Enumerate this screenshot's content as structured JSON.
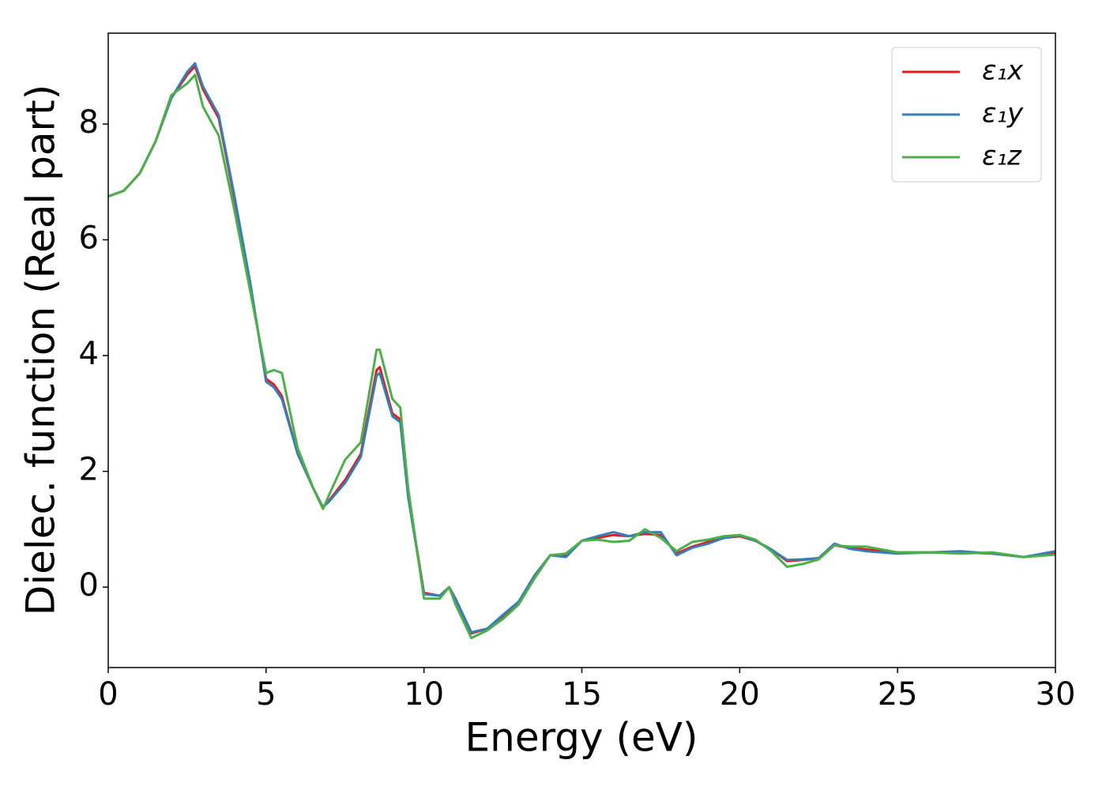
{
  "chart_data": {
    "type": "line",
    "xlabel": "Energy (eV)",
    "ylabel": "Dielec. function (Real part)",
    "x": [
      0,
      0.5,
      1,
      1.5,
      2,
      2.5,
      2.75,
      3,
      3.5,
      4,
      4.5,
      5,
      5.25,
      5.5,
      6,
      6.5,
      6.8,
      7,
      7.5,
      8,
      8.5,
      8.6,
      9,
      9.25,
      9.5,
      10,
      10.5,
      10.8,
      11,
      11.5,
      12,
      12.5,
      13,
      13.5,
      14,
      14.5,
      15,
      15.5,
      16,
      16.5,
      17,
      17.5,
      18,
      18.5,
      19,
      19.5,
      20,
      20.5,
      21,
      21.5,
      22,
      22.5,
      23,
      23.5,
      24,
      25,
      26,
      27,
      28,
      29,
      30
    ],
    "series": [
      {
        "name": "ε₁x",
        "color": "#e41a1c",
        "values": [
          6.75,
          6.85,
          7.15,
          7.7,
          8.45,
          8.85,
          9.0,
          8.6,
          8.1,
          6.7,
          5.2,
          3.6,
          3.5,
          3.3,
          2.3,
          1.7,
          1.38,
          1.5,
          1.85,
          2.3,
          3.75,
          3.8,
          3.0,
          2.9,
          1.6,
          -0.1,
          -0.15,
          0.0,
          -0.2,
          -0.8,
          -0.72,
          -0.5,
          -0.25,
          0.2,
          0.55,
          0.55,
          0.8,
          0.85,
          0.9,
          0.88,
          0.92,
          0.9,
          0.58,
          0.7,
          0.78,
          0.85,
          0.88,
          0.8,
          0.65,
          0.45,
          0.47,
          0.5,
          0.72,
          0.68,
          0.65,
          0.6,
          0.6,
          0.6,
          0.58,
          0.52,
          0.6
        ]
      },
      {
        "name": "ε₁y",
        "color": "#377eb8",
        "values": [
          6.75,
          6.85,
          7.15,
          7.7,
          8.45,
          8.9,
          9.05,
          8.65,
          8.15,
          6.75,
          5.25,
          3.55,
          3.45,
          3.25,
          2.3,
          1.7,
          1.38,
          1.48,
          1.8,
          2.25,
          3.65,
          3.7,
          2.95,
          2.85,
          1.55,
          -0.12,
          -0.15,
          0.0,
          -0.2,
          -0.78,
          -0.72,
          -0.48,
          -0.25,
          0.2,
          0.55,
          0.52,
          0.8,
          0.88,
          0.95,
          0.88,
          0.95,
          0.95,
          0.55,
          0.68,
          0.75,
          0.85,
          0.9,
          0.8,
          0.65,
          0.47,
          0.48,
          0.5,
          0.75,
          0.66,
          0.62,
          0.58,
          0.6,
          0.62,
          0.58,
          0.52,
          0.62
        ]
      },
      {
        "name": "ε₁z",
        "color": "#4daf4a",
        "values": [
          6.75,
          6.85,
          7.15,
          7.7,
          8.5,
          8.7,
          8.85,
          8.3,
          7.8,
          6.5,
          5.1,
          3.7,
          3.75,
          3.7,
          2.4,
          1.7,
          1.35,
          1.6,
          2.2,
          2.5,
          4.1,
          4.1,
          3.25,
          3.1,
          1.7,
          -0.2,
          -0.2,
          0.0,
          -0.3,
          -0.88,
          -0.75,
          -0.55,
          -0.3,
          0.15,
          0.55,
          0.58,
          0.8,
          0.82,
          0.78,
          0.8,
          1.0,
          0.85,
          0.62,
          0.78,
          0.82,
          0.88,
          0.9,
          0.82,
          0.62,
          0.35,
          0.4,
          0.48,
          0.72,
          0.7,
          0.7,
          0.6,
          0.6,
          0.58,
          0.6,
          0.52,
          0.56
        ]
      }
    ],
    "xlim": [
      0,
      30
    ],
    "ylim": [
      -1.39,
      9.57
    ],
    "xticks": [
      0,
      5,
      10,
      15,
      20,
      25,
      30
    ],
    "yticks": [
      0,
      2,
      4,
      6,
      8
    ],
    "legend": "upper right"
  }
}
